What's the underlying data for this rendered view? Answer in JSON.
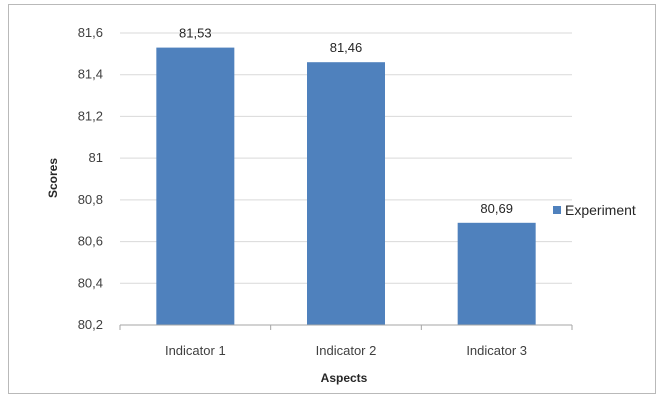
{
  "chart_data": {
    "type": "bar",
    "categories": [
      "Indicator 1",
      "Indicator 2",
      "Indicator 3"
    ],
    "series": [
      {
        "name": "Experiment",
        "values": [
          81.53,
          81.46,
          80.69
        ],
        "color": "#4f81bd"
      }
    ],
    "data_labels": [
      "81,53",
      "81,46",
      "80,69"
    ],
    "ylim": [
      80.2,
      81.6
    ],
    "y_ticks": [
      80.2,
      80.4,
      80.6,
      80.8,
      81,
      81.2,
      81.4,
      81.6
    ],
    "y_tick_labels": [
      "80,2",
      "80,4",
      "80,6",
      "80,8",
      "81",
      "81,2",
      "81,4",
      "81,6"
    ],
    "xlabel": "Aspects",
    "ylabel": "Scores",
    "grid": true,
    "legend_position": "right"
  }
}
